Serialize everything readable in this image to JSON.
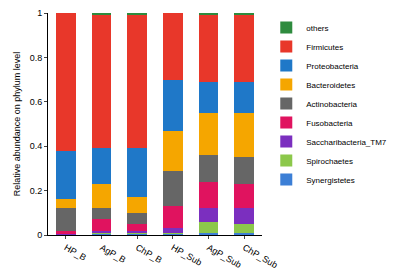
{
  "chart_data": {
    "type": "bar",
    "stacked": true,
    "legend": "top right",
    "y_label": "Relative abundance on phylum level",
    "categories": [
      "HP_B",
      "AgP_B",
      "ChP_B",
      "HP_Sub",
      "AgP_Sub",
      "ChP_Sub"
    ],
    "ylim": [
      0,
      1
    ],
    "yticks": [
      0,
      0.2,
      0.4,
      0.6,
      0.8,
      1
    ],
    "grid": false,
    "series": [
      {
        "name": "Synergistetes",
        "color": "#3c7fd6",
        "values": [
          0,
          0.005,
          0.005,
          0.005,
          0.01,
          0.01
        ]
      },
      {
        "name": "Spirochaetes",
        "color": "#8cc84b",
        "values": [
          0,
          0.005,
          0.005,
          0.005,
          0.05,
          0.04
        ]
      },
      {
        "name": "Saccharibacteria_TM7",
        "color": "#7b2fbf",
        "values": [
          0.005,
          0.01,
          0.01,
          0.02,
          0.06,
          0.07
        ]
      },
      {
        "name": "Fusobacteria",
        "color": "#e0135f",
        "values": [
          0.015,
          0.05,
          0.03,
          0.1,
          0.12,
          0.11
        ]
      },
      {
        "name": "Actinobacteria",
        "color": "#666666",
        "values": [
          0.1,
          0.05,
          0.05,
          0.16,
          0.12,
          0.12
        ]
      },
      {
        "name": "Bacteroidetes",
        "color": "#f5a600",
        "values": [
          0.04,
          0.11,
          0.07,
          0.18,
          0.19,
          0.2
        ]
      },
      {
        "name": "Proteobacteria",
        "color": "#1f78c8",
        "values": [
          0.22,
          0.16,
          0.22,
          0.23,
          0.14,
          0.14
        ]
      },
      {
        "name": "Firmicutes",
        "color": "#e8372a",
        "values": [
          0.62,
          0.6,
          0.6,
          0.3,
          0.3,
          0.3
        ]
      },
      {
        "name": "others",
        "color": "#2e8b3e",
        "values": [
          0,
          0.01,
          0.01,
          0,
          0.01,
          0.01
        ]
      }
    ]
  }
}
